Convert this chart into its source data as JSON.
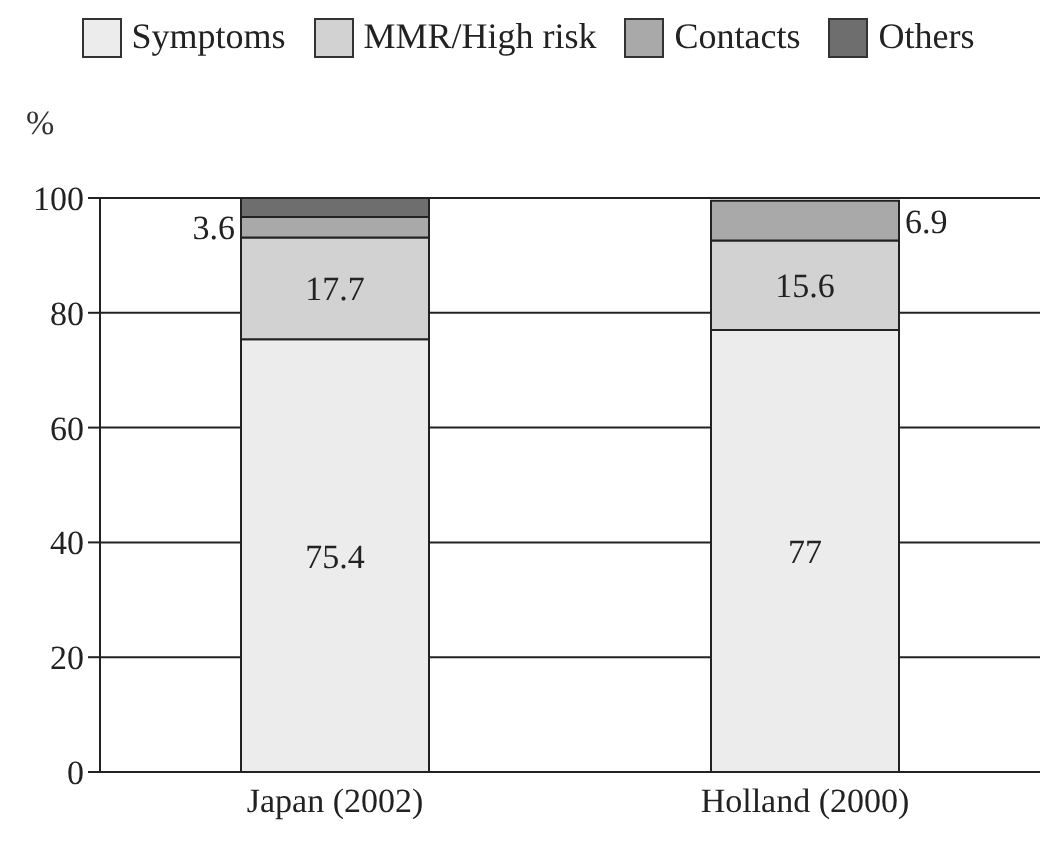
{
  "chart_data": {
    "type": "bar",
    "stacked": true,
    "ylabel": "%",
    "categories": [
      "Japan (2002)",
      "Holland (2000)"
    ],
    "series": [
      {
        "name": "Symptoms",
        "color": "#ececec",
        "values": [
          75.4,
          77
        ],
        "value_labels": [
          "75.4",
          "77"
        ]
      },
      {
        "name": "MMR/High risk",
        "color": "#d2d2d2",
        "values": [
          17.7,
          15.6
        ],
        "value_labels": [
          "17.7",
          "15.6"
        ]
      },
      {
        "name": "Contacts",
        "color": "#a9a9a9",
        "values": [
          3.6,
          6.9
        ],
        "value_labels": [
          "3.6",
          "6.9"
        ]
      },
      {
        "name": "Others",
        "color": "#6e6e6e",
        "values": [
          3.3,
          null
        ]
      }
    ],
    "ylim": [
      0,
      100
    ],
    "yticks": [
      0,
      20,
      40,
      60,
      80,
      100
    ],
    "grid": "y",
    "legend": "top"
  }
}
